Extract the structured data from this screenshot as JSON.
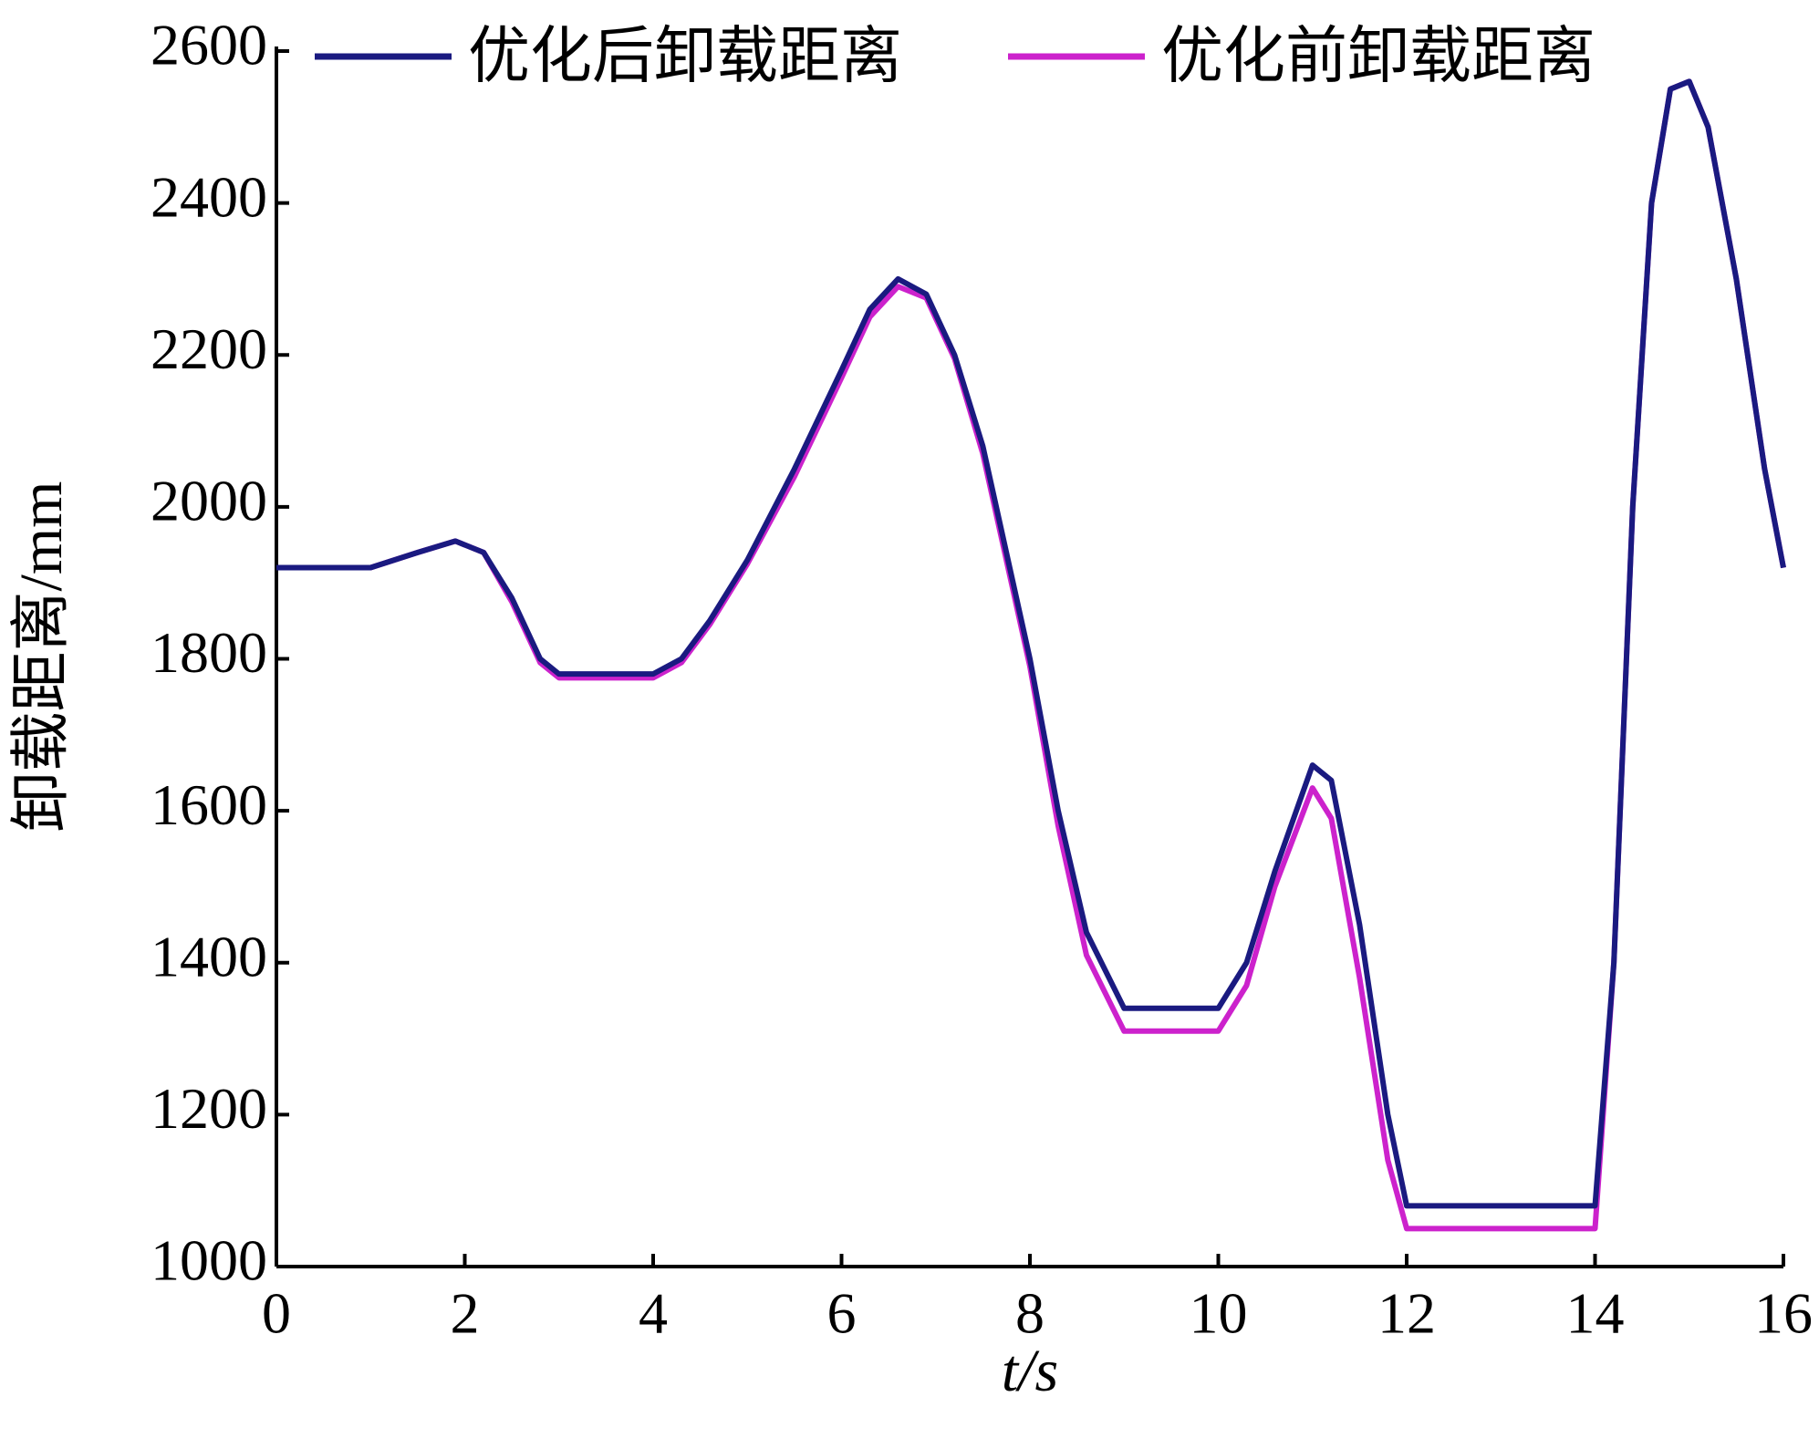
{
  "chart_data": {
    "type": "line",
    "x_label": "t/s",
    "y_label": "卸载距离/mm",
    "x": [
      0,
      0.5,
      1,
      1.5,
      1.9,
      2.2,
      2.5,
      2.8,
      3,
      3.5,
      4,
      4.3,
      4.6,
      5,
      5.5,
      6,
      6.3,
      6.6,
      6.9,
      7.2,
      7.5,
      8,
      8.3,
      8.6,
      9,
      9.5,
      10,
      10.3,
      10.6,
      11,
      11.2,
      11.5,
      11.8,
      12,
      12.5,
      13,
      13.5,
      14,
      14.2,
      14.4,
      14.6,
      14.8,
      15,
      15.2,
      15.5,
      15.8,
      16
    ],
    "series": [
      {
        "name": "优化后卸载距离",
        "color": "#1a1a80",
        "values": [
          1920,
          1920,
          1920,
          1940,
          1955,
          1940,
          1880,
          1800,
          1780,
          1780,
          1780,
          1800,
          1850,
          1930,
          2050,
          2180,
          2260,
          2300,
          2280,
          2200,
          2080,
          1800,
          1600,
          1440,
          1340,
          1340,
          1340,
          1400,
          1520,
          1660,
          1640,
          1450,
          1200,
          1080,
          1080,
          1080,
          1080,
          1080,
          1400,
          2000,
          2400,
          2550,
          2560,
          2500,
          2300,
          2050,
          1920
        ]
      },
      {
        "name": "优化前卸载距离",
        "color": "#cc22cc",
        "values": [
          1920,
          1920,
          1920,
          1940,
          1955,
          1940,
          1875,
          1795,
          1775,
          1775,
          1775,
          1795,
          1845,
          1925,
          2040,
          2170,
          2250,
          2290,
          2275,
          2195,
          2070,
          1790,
          1580,
          1410,
          1310,
          1310,
          1310,
          1370,
          1500,
          1630,
          1590,
          1380,
          1140,
          1050,
          1050,
          1050,
          1050,
          1050,
          1400,
          2000,
          2400,
          2550,
          2560,
          2500,
          2300,
          2050,
          1920
        ]
      }
    ],
    "xlim": [
      0,
      16
    ],
    "xticks": [
      0,
      2,
      4,
      6,
      8,
      10,
      12,
      14,
      16
    ],
    "ylim": [
      1000,
      2600
    ],
    "yticks": [
      1000,
      1200,
      1400,
      1600,
      1800,
      2000,
      2200,
      2400,
      2600
    ],
    "grid": false,
    "legend": "top"
  }
}
